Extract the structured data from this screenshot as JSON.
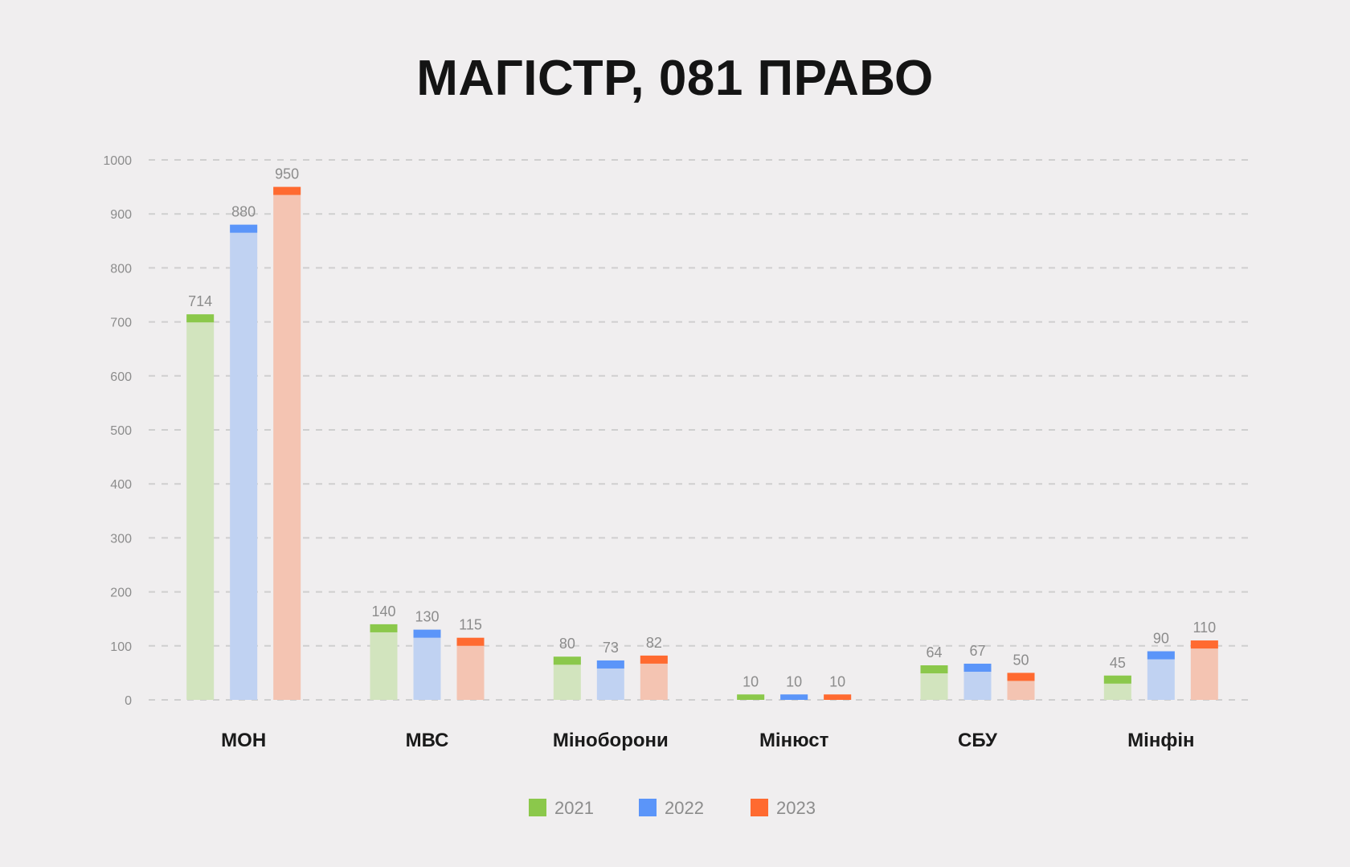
{
  "chart_data": {
    "type": "bar",
    "title": "МАГІСТР, 081 ПРАВО",
    "xlabel": "",
    "ylabel": "",
    "categories": [
      "МОН",
      "МВС",
      "Міноборони",
      "Мінюст",
      "СБУ",
      "Мінфін"
    ],
    "series": [
      {
        "name": "2021",
        "color": "#8bc84b",
        "light_color": "#d2e4be",
        "values": [
          714,
          140,
          80,
          10,
          64,
          45
        ]
      },
      {
        "name": "2022",
        "color": "#5b95f9",
        "light_color": "#c0d2f2",
        "values": [
          880,
          130,
          73,
          10,
          67,
          90
        ]
      },
      {
        "name": "2023",
        "color": "#ff6a30",
        "light_color": "#f4c4b2",
        "values": [
          950,
          115,
          82,
          10,
          50,
          110
        ]
      }
    ],
    "ylim": [
      0,
      1000
    ],
    "yticks": [
      0,
      100,
      200,
      300,
      400,
      500,
      600,
      700,
      800,
      900,
      1000
    ],
    "grid": true,
    "legend": "bottom-center"
  }
}
